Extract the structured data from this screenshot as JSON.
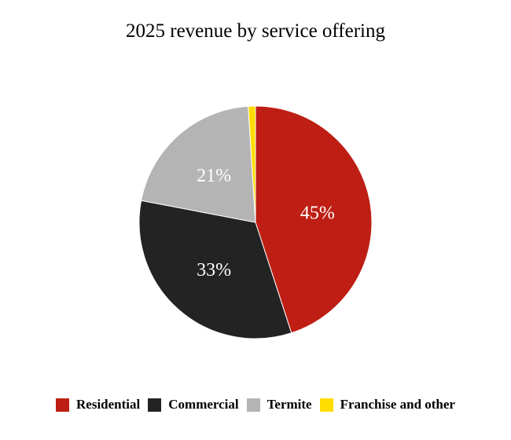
{
  "chart_data": {
    "type": "pie",
    "title": "2025 revenue by service offering",
    "start": "top",
    "direction": "clockwise",
    "legend_position": "bottom",
    "slices": [
      {
        "label": "Residential",
        "value": 45,
        "display": "45%",
        "color": "#BE1E14"
      },
      {
        "label": "Commercial",
        "value": 33,
        "display": "33%",
        "color": "#232323"
      },
      {
        "label": "Termite",
        "value": 21,
        "display": "21%",
        "color": "#B4B4B4"
      },
      {
        "label": "Franchise and other",
        "value": 1,
        "display": "",
        "color": "#FFDD00"
      }
    ]
  }
}
